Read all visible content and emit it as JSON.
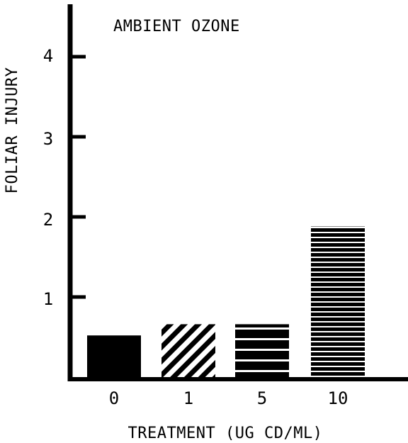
{
  "chart_data": {
    "type": "bar",
    "title": "AMBIENT OZONE",
    "xlabel": "TREATMENT (UG CD/ML)",
    "ylabel": "FOLIAR INJURY",
    "categories": [
      "0",
      "1",
      "5",
      "10"
    ],
    "values": [
      0.52,
      0.66,
      0.66,
      1.88
    ],
    "fills": [
      "solid",
      "diagonal-stripes",
      "wide-horizontal-stripes",
      "narrow-horizontal-stripes"
    ],
    "ylim": [
      0,
      4.5
    ],
    "yticks": [
      "1",
      "2",
      "3",
      "4"
    ],
    "grid": false,
    "legend": "none",
    "color": "#000000"
  }
}
